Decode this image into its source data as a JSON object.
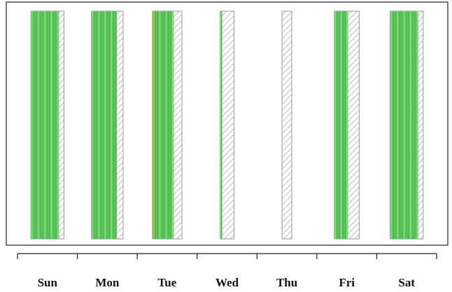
{
  "chart_data": {
    "type": "bar",
    "categories": [
      "Sun",
      "Mon",
      "Tue",
      "Wed",
      "Thu",
      "Fri",
      "Sat"
    ],
    "title": "",
    "xlabel": "",
    "ylabel": "",
    "grid": false,
    "legend": "none",
    "colors": {
      "frame": "#222222",
      "green": "#5cc85c",
      "light_green": "#a8e6a0",
      "orange": "#e8a040",
      "hatch": "#aaaaaa"
    },
    "days": [
      {
        "name": "Sun",
        "green_fraction": 0.85,
        "has_orange": false,
        "hatched": true
      },
      {
        "name": "Mon",
        "green_fraction": 0.8,
        "has_orange": false,
        "hatched": true
      },
      {
        "name": "Tue",
        "green_fraction": 0.72,
        "has_orange": true,
        "hatched": true
      },
      {
        "name": "Wed",
        "green_fraction": 0.15,
        "has_orange": false,
        "hatched": true
      },
      {
        "name": "Thu",
        "green_fraction": 0.0,
        "has_orange": false,
        "hatched": true
      },
      {
        "name": "Fri",
        "green_fraction": 0.55,
        "has_orange": false,
        "hatched": true
      },
      {
        "name": "Sat",
        "green_fraction": 0.85,
        "has_orange": false,
        "hatched": true
      }
    ]
  }
}
